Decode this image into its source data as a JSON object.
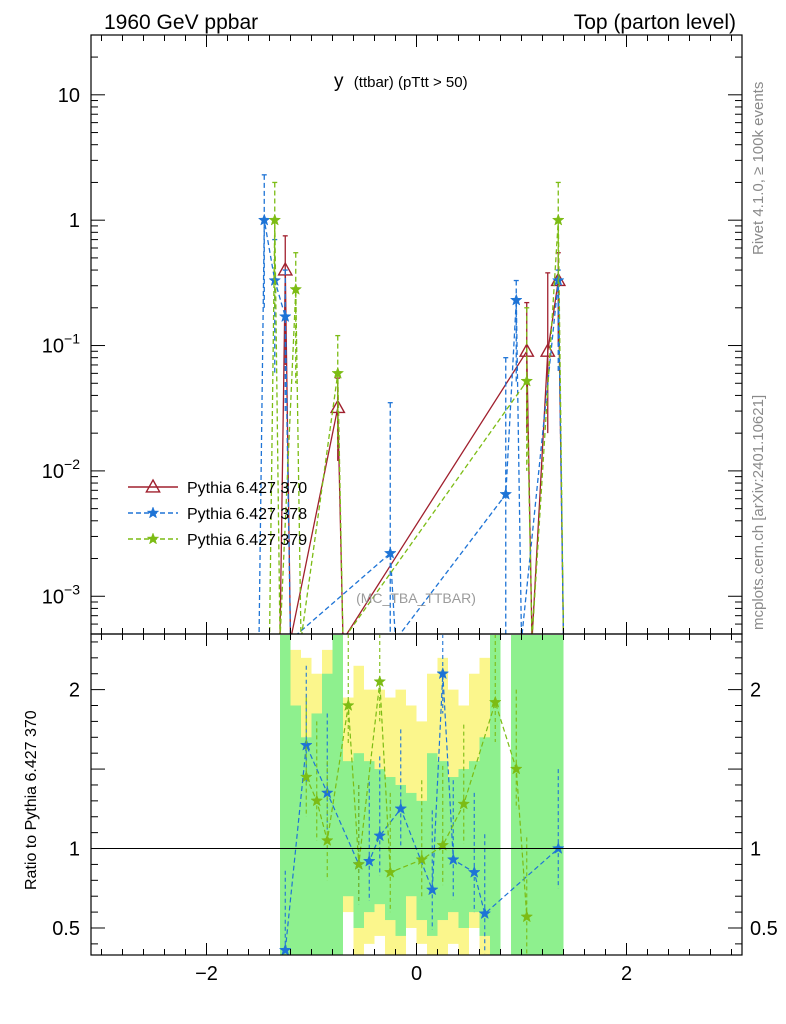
{
  "header": {
    "left": "1960 GeV ppbar",
    "right": "Top (parton level)"
  },
  "side": {
    "rivet": "Rivet 4.1.0, ≥ 100k events",
    "mcplots": "mcplots.cern.ch [arXiv:2401.10621]"
  },
  "analysis_watermark": "(MC_TBA_TTBAR)",
  "colors": {
    "s370": "#a0202e",
    "s378": "#1e74d6",
    "s379": "#7cbc14",
    "band_yellow": "#fbf68c",
    "band_green": "#8ef08e"
  },
  "chart_data": {
    "type": "line",
    "title": "y (ttbar) (pTtt > 50)",
    "title_main": "y",
    "title_sub": "(ttbar) (pTtt > 50)",
    "xlim": [
      -3.1,
      3.1
    ],
    "ylim_main": [
      0.0005,
      30
    ],
    "yscale_main": "log",
    "ylim_ratio": [
      0.33,
      2.35
    ],
    "ylabel_ratio": "Ratio to Pythia 6.427 370",
    "xticks": [
      -2,
      0,
      2
    ],
    "xtick_labels": [
      "−2",
      "0",
      "2"
    ],
    "yticks_main": [
      {
        "v": 10,
        "base": "10",
        "exp": ""
      },
      {
        "v": 1,
        "base": "1",
        "exp": ""
      },
      {
        "v": 0.1,
        "base": "10",
        "exp": "−1"
      },
      {
        "v": 0.01,
        "base": "10",
        "exp": "−2"
      },
      {
        "v": 0.001,
        "base": "10",
        "exp": "−3"
      }
    ],
    "yticks_ratio": [
      {
        "v": 2,
        "label": "2"
      },
      {
        "v": 1,
        "label": "1"
      },
      {
        "v": 0.5,
        "label": "0.5"
      }
    ],
    "legend_position": "middle-left",
    "series": [
      {
        "name": "Pythia 6.427 370",
        "key": "s370",
        "marker": "triangle",
        "dash": "",
        "points": [
          {
            "x": -1.25,
            "y": 0.4,
            "lo": 0.07,
            "hi": 0.75
          },
          {
            "x": -0.75,
            "y": 0.032,
            "lo": 0.012,
            "hi": 0.055
          },
          {
            "x": 1.05,
            "y": 0.09,
            "lo": 0.02,
            "hi": 0.22
          },
          {
            "x": 1.25,
            "y": 0.09,
            "lo": 0.02,
            "hi": 0.38
          },
          {
            "x": 1.35,
            "y": 0.33,
            "lo": 0.1,
            "hi": 0.55
          }
        ]
      },
      {
        "name": "Pythia 6.427 378",
        "key": "s378",
        "marker": "star",
        "dash": "5,3",
        "points": [
          {
            "x": -1.45,
            "y": 1.0,
            "lo": 0.2,
            "hi": 2.3
          },
          {
            "x": -1.35,
            "y": 0.33,
            "lo": 0.06,
            "hi": 0.7
          },
          {
            "x": -1.25,
            "y": 0.17,
            "lo": 0.03,
            "hi": 0.4
          },
          {
            "x": -0.25,
            "y": 0.0022,
            "lo": 0.0005,
            "hi": 0.035
          },
          {
            "x": 0.85,
            "y": 0.0065,
            "lo": 0.0005,
            "hi": 0.08
          },
          {
            "x": 0.95,
            "y": 0.23,
            "lo": 0.05,
            "hi": 0.33
          },
          {
            "x": 1.35,
            "y": 0.33,
            "lo": 0.06,
            "hi": 0.4
          }
        ]
      },
      {
        "name": "Pythia 6.427 379",
        "key": "s379",
        "marker": "star",
        "dash": "5,3",
        "points": [
          {
            "x": -1.35,
            "y": 1.0,
            "lo": 0.2,
            "hi": 2.0
          },
          {
            "x": -1.15,
            "y": 0.28,
            "lo": 0.05,
            "hi": 0.55
          },
          {
            "x": -0.75,
            "y": 0.06,
            "lo": 0.015,
            "hi": 0.12
          },
          {
            "x": 1.05,
            "y": 0.052,
            "lo": 0.01,
            "hi": 0.2
          },
          {
            "x": 1.35,
            "y": 1.0,
            "lo": 0.3,
            "hi": 2.0
          }
        ]
      }
    ],
    "ratio": {
      "s378": [
        {
          "x": -1.25,
          "y": 0.36
        },
        {
          "x": -1.05,
          "y": 1.65
        },
        {
          "x": -0.85,
          "y": 1.35
        },
        {
          "x": -0.55,
          "y": 0.9
        },
        {
          "x": -0.45,
          "y": 0.92
        },
        {
          "x": -0.35,
          "y": 1.08
        },
        {
          "x": -0.15,
          "y": 1.25
        },
        {
          "x": 0.15,
          "y": 0.74
        },
        {
          "x": 0.25,
          "y": 2.1
        },
        {
          "x": 0.35,
          "y": 0.93
        },
        {
          "x": 0.55,
          "y": 0.85
        },
        {
          "x": 0.65,
          "y": 0.59
        },
        {
          "x": 1.35,
          "y": 1.0
        }
      ],
      "s379": [
        {
          "x": -1.05,
          "y": 1.45
        },
        {
          "x": -0.95,
          "y": 1.3
        },
        {
          "x": -0.85,
          "y": 1.05
        },
        {
          "x": -0.65,
          "y": 1.9
        },
        {
          "x": -0.55,
          "y": 0.9
        },
        {
          "x": -0.35,
          "y": 2.05
        },
        {
          "x": -0.25,
          "y": 0.85
        },
        {
          "x": 0.05,
          "y": 0.93
        },
        {
          "x": 0.25,
          "y": 1.02
        },
        {
          "x": 0.45,
          "y": 1.28
        },
        {
          "x": 0.75,
          "y": 1.92
        },
        {
          "x": 0.95,
          "y": 1.5
        },
        {
          "x": 1.05,
          "y": 0.57
        }
      ],
      "yellow_band": [
        {
          "x0": -1.3,
          "x1": -1.2,
          "lo": 0.33,
          "hi": 2.35
        },
        {
          "x0": -1.2,
          "x1": -1.1,
          "lo": 0.33,
          "hi": 2.25
        },
        {
          "x0": -1.1,
          "x1": -1.0,
          "lo": 0.33,
          "hi": 2.2
        },
        {
          "x0": -1.0,
          "x1": -0.9,
          "lo": 0.33,
          "hi": 2.1
        },
        {
          "x0": -0.9,
          "x1": -0.8,
          "lo": 0.33,
          "hi": 2.25
        },
        {
          "x0": -0.8,
          "x1": -0.7,
          "lo": 0.33,
          "hi": 2.35
        },
        {
          "x0": -0.7,
          "x1": -0.6,
          "lo": 0.6,
          "hi": 1.95
        },
        {
          "x0": -0.6,
          "x1": -0.5,
          "lo": 0.33,
          "hi": 2.15
        },
        {
          "x0": -0.5,
          "x1": -0.4,
          "lo": 0.4,
          "hi": 2.0
        },
        {
          "x0": -0.4,
          "x1": -0.3,
          "lo": 0.45,
          "hi": 2.0
        },
        {
          "x0": -0.3,
          "x1": -0.2,
          "lo": 0.33,
          "hi": 1.95
        },
        {
          "x0": -0.2,
          "x1": -0.1,
          "lo": 0.33,
          "hi": 2.0
        },
        {
          "x0": -0.1,
          "x1": 0.0,
          "lo": 0.5,
          "hi": 1.9
        },
        {
          "x0": 0.0,
          "x1": 0.1,
          "lo": 0.4,
          "hi": 1.8
        },
        {
          "x0": 0.1,
          "x1": 0.2,
          "lo": 0.33,
          "hi": 2.1
        },
        {
          "x0": 0.2,
          "x1": 0.3,
          "lo": 0.33,
          "hi": 2.2
        },
        {
          "x0": 0.3,
          "x1": 0.4,
          "lo": 0.4,
          "hi": 2.0
        },
        {
          "x0": 0.4,
          "x1": 0.5,
          "lo": 0.33,
          "hi": 1.9
        },
        {
          "x0": 0.5,
          "x1": 0.6,
          "lo": 0.5,
          "hi": 2.1
        },
        {
          "x0": 0.6,
          "x1": 0.7,
          "lo": 0.33,
          "hi": 2.2
        },
        {
          "x0": 0.7,
          "x1": 0.8,
          "lo": 0.33,
          "hi": 2.35
        },
        {
          "x0": 0.9,
          "x1": 1.0,
          "lo": 0.33,
          "hi": 2.35
        },
        {
          "x0": 1.0,
          "x1": 1.1,
          "lo": 0.33,
          "hi": 2.35
        },
        {
          "x0": 1.1,
          "x1": 1.2,
          "lo": 0.33,
          "hi": 2.35
        },
        {
          "x0": 1.2,
          "x1": 1.3,
          "lo": 0.33,
          "hi": 2.35
        },
        {
          "x0": 1.3,
          "x1": 1.4,
          "lo": 0.33,
          "hi": 2.35
        }
      ],
      "green_band": [
        {
          "x0": -1.3,
          "x1": -1.2,
          "lo": 0.33,
          "hi": 2.35
        },
        {
          "x0": -1.2,
          "x1": -1.1,
          "lo": 0.33,
          "hi": 1.9
        },
        {
          "x0": -1.1,
          "x1": -1.0,
          "lo": 0.33,
          "hi": 1.7
        },
        {
          "x0": -1.0,
          "x1": -0.9,
          "lo": 0.33,
          "hi": 1.85
        },
        {
          "x0": -0.9,
          "x1": -0.8,
          "lo": 0.33,
          "hi": 2.1
        },
        {
          "x0": -0.8,
          "x1": -0.7,
          "lo": 0.33,
          "hi": 2.35
        },
        {
          "x0": -0.7,
          "x1": -0.6,
          "lo": 0.7,
          "hi": 1.55
        },
        {
          "x0": -0.6,
          "x1": -0.5,
          "lo": 0.5,
          "hi": 1.6
        },
        {
          "x0": -0.5,
          "x1": -0.4,
          "lo": 0.6,
          "hi": 1.55
        },
        {
          "x0": -0.4,
          "x1": -0.3,
          "lo": 0.65,
          "hi": 1.5
        },
        {
          "x0": -0.3,
          "x1": -0.2,
          "lo": 0.55,
          "hi": 1.45
        },
        {
          "x0": -0.2,
          "x1": -0.1,
          "lo": 0.45,
          "hi": 1.4
        },
        {
          "x0": -0.1,
          "x1": 0.0,
          "lo": 0.7,
          "hi": 1.35
        },
        {
          "x0": 0.0,
          "x1": 0.1,
          "lo": 0.55,
          "hi": 1.3
        },
        {
          "x0": 0.1,
          "x1": 0.2,
          "lo": 0.45,
          "hi": 1.6
        },
        {
          "x0": 0.2,
          "x1": 0.3,
          "lo": 0.55,
          "hi": 1.55
        },
        {
          "x0": 0.3,
          "x1": 0.4,
          "lo": 0.6,
          "hi": 1.45
        },
        {
          "x0": 0.4,
          "x1": 0.5,
          "lo": 0.5,
          "hi": 1.5
        },
        {
          "x0": 0.5,
          "x1": 0.6,
          "lo": 0.6,
          "hi": 1.55
        },
        {
          "x0": 0.6,
          "x1": 0.7,
          "lo": 0.45,
          "hi": 1.7
        },
        {
          "x0": 0.7,
          "x1": 0.8,
          "lo": 0.33,
          "hi": 2.35
        },
        {
          "x0": 0.9,
          "x1": 1.0,
          "lo": 0.33,
          "hi": 2.35
        },
        {
          "x0": 1.0,
          "x1": 1.1,
          "lo": 0.33,
          "hi": 2.35
        },
        {
          "x0": 1.1,
          "x1": 1.2,
          "lo": 0.33,
          "hi": 2.35
        },
        {
          "x0": 1.2,
          "x1": 1.3,
          "lo": 0.33,
          "hi": 2.35
        },
        {
          "x0": 1.3,
          "x1": 1.4,
          "lo": 0.33,
          "hi": 2.35
        }
      ]
    }
  }
}
